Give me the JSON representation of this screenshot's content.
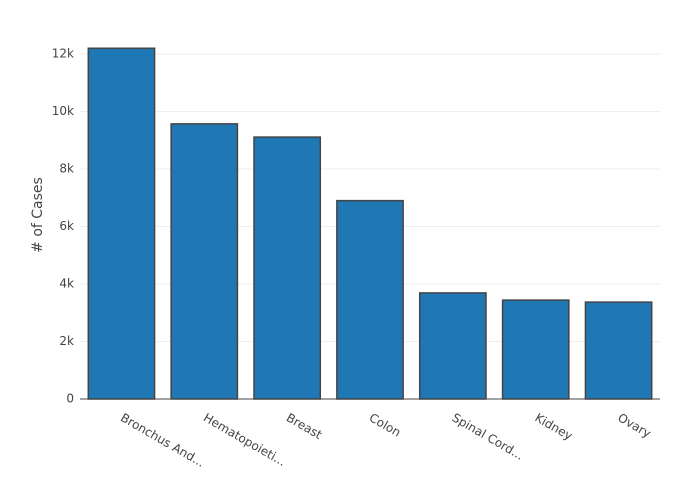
{
  "chart_data": {
    "type": "bar",
    "y_label": "# of Cases",
    "categories": [
      "Bronchus And...",
      "Hematopoieti...",
      "Breast",
      "Colon",
      "Spinal Cord...",
      "Kidney",
      "Ovary"
    ],
    "values": [
      12200,
      9570,
      9110,
      6900,
      3690,
      3440,
      3370
    ],
    "color": "#1f77b4",
    "ylim": [
      0,
      12850
    ],
    "yticks": [
      0,
      {
        "value": 2000,
        "label": "2k"
      },
      {
        "value": 4000,
        "label": "4k"
      },
      {
        "value": 6000,
        "label": "6k"
      },
      {
        "value": 8000,
        "label": "8k"
      },
      {
        "value": 10000,
        "label": "10k"
      },
      {
        "value": 12000,
        "label": "12k"
      }
    ],
    "grid": true
  }
}
